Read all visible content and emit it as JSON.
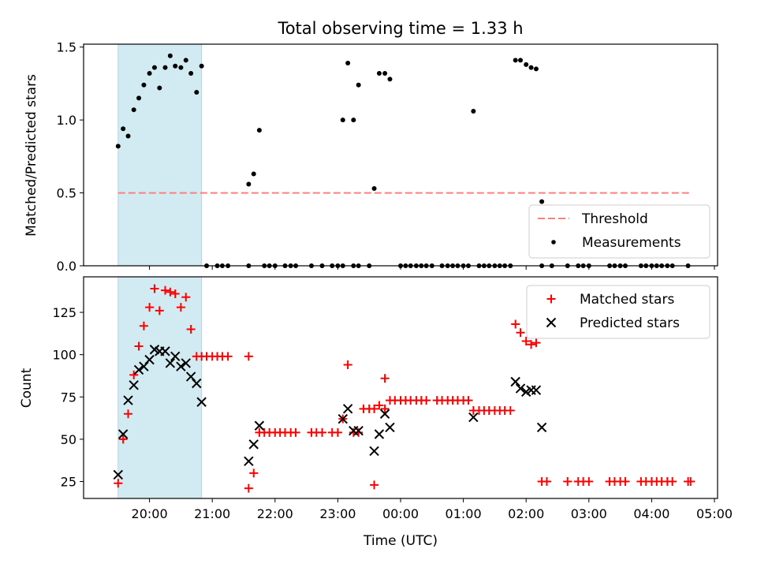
{
  "title": "Total observing time = 1.33 h",
  "chart_data": [
    {
      "type": "scatter",
      "panel": "top",
      "ylabel": "Matched/Predicted stars",
      "ylim": [
        0,
        1.52
      ],
      "yticks": [
        0.0,
        0.5,
        1.0,
        1.5
      ],
      "ytick_labels": [
        "0.0",
        "0.5",
        "1.0",
        "1.5"
      ],
      "highlight_span_hours": [
        19.5,
        20.83
      ],
      "highlight_color": "#add8e6",
      "threshold": {
        "name": "Threshold",
        "value": 0.5,
        "x_range": [
          19.5,
          28.6
        ],
        "color": "#ff7f7f",
        "style": "dashed"
      },
      "series": [
        {
          "name": "Measurements",
          "color": "#000000",
          "points_hours_ratio": [
            [
              19.5,
              0.82
            ],
            [
              19.58,
              0.94
            ],
            [
              19.66,
              0.89
            ],
            [
              19.75,
              1.07
            ],
            [
              19.83,
              1.15
            ],
            [
              19.91,
              1.24
            ],
            [
              20.0,
              1.32
            ],
            [
              20.08,
              1.36
            ],
            [
              20.16,
              1.22
            ],
            [
              20.25,
              1.36
            ],
            [
              20.33,
              1.44
            ],
            [
              20.41,
              1.37
            ],
            [
              20.5,
              1.36
            ],
            [
              20.58,
              1.41
            ],
            [
              20.66,
              1.32
            ],
            [
              20.75,
              1.19
            ],
            [
              20.83,
              1.37
            ],
            [
              20.91,
              0
            ],
            [
              21.08,
              0
            ],
            [
              21.16,
              0
            ],
            [
              21.25,
              0
            ],
            [
              21.58,
              0
            ],
            [
              21.83,
              0
            ],
            [
              21.91,
              0
            ],
            [
              22.0,
              0
            ],
            [
              22.16,
              0
            ],
            [
              22.25,
              0
            ],
            [
              22.33,
              0
            ],
            [
              22.58,
              0
            ],
            [
              22.75,
              0
            ],
            [
              22.91,
              0
            ],
            [
              23.0,
              0
            ],
            [
              23.08,
              0
            ],
            [
              23.25,
              0
            ],
            [
              23.33,
              0
            ],
            [
              23.5,
              0
            ],
            [
              24.0,
              0
            ],
            [
              24.08,
              0
            ],
            [
              24.16,
              0
            ],
            [
              24.25,
              0
            ],
            [
              24.33,
              0
            ],
            [
              24.41,
              0
            ],
            [
              24.5,
              0
            ],
            [
              24.66,
              0
            ],
            [
              24.75,
              0
            ],
            [
              24.83,
              0
            ],
            [
              24.91,
              0
            ],
            [
              25.0,
              0
            ],
            [
              25.08,
              0
            ],
            [
              25.25,
              0
            ],
            [
              25.33,
              0
            ],
            [
              25.41,
              0
            ],
            [
              25.5,
              0
            ],
            [
              25.58,
              0
            ],
            [
              25.66,
              0
            ],
            [
              25.75,
              0
            ],
            [
              26.25,
              0
            ],
            [
              26.41,
              0
            ],
            [
              26.66,
              0
            ],
            [
              26.83,
              0
            ],
            [
              26.91,
              0
            ],
            [
              27.0,
              0
            ],
            [
              27.33,
              0
            ],
            [
              27.41,
              0
            ],
            [
              27.5,
              0
            ],
            [
              27.58,
              0
            ],
            [
              27.83,
              0
            ],
            [
              27.91,
              0
            ],
            [
              28.0,
              0
            ],
            [
              28.08,
              0
            ],
            [
              28.16,
              0
            ],
            [
              28.25,
              0
            ],
            [
              28.33,
              0
            ],
            [
              28.58,
              0
            ],
            [
              21.58,
              0.56
            ],
            [
              21.66,
              0.63
            ],
            [
              21.75,
              0.93
            ],
            [
              23.08,
              1.0
            ],
            [
              23.16,
              1.39
            ],
            [
              23.25,
              1.0
            ],
            [
              23.33,
              1.24
            ],
            [
              23.58,
              0.53
            ],
            [
              23.66,
              1.32
            ],
            [
              23.75,
              1.32
            ],
            [
              23.83,
              1.28
            ],
            [
              25.16,
              1.06
            ],
            [
              25.83,
              1.41
            ],
            [
              25.91,
              1.41
            ],
            [
              26.0,
              1.38
            ],
            [
              26.08,
              1.36
            ],
            [
              26.16,
              1.35
            ],
            [
              26.25,
              0.44
            ]
          ]
        }
      ]
    },
    {
      "type": "scatter",
      "panel": "bottom",
      "xlabel": "Time (UTC)",
      "ylabel": "Count",
      "xlim_hours": [
        18.95,
        29.05
      ],
      "ylim": [
        15,
        146
      ],
      "yticks": [
        25,
        50,
        75,
        100,
        125
      ],
      "ytick_labels": [
        "25",
        "50",
        "75",
        "100",
        "125"
      ],
      "xticks_hours": [
        20,
        21,
        22,
        23,
        24,
        25,
        26,
        27,
        28,
        29
      ],
      "xtick_labels": [
        "20:00",
        "21:00",
        "22:00",
        "23:00",
        "00:00",
        "01:00",
        "02:00",
        "03:00",
        "04:00",
        "05:00"
      ],
      "highlight_span_hours": [
        19.5,
        20.83
      ],
      "highlight_color": "#add8e6",
      "series": [
        {
          "name": "Matched stars",
          "marker": "plus",
          "color": "#ff0000",
          "points_hours_count": [
            [
              19.5,
              24
            ],
            [
              19.58,
              50
            ],
            [
              19.66,
              65
            ],
            [
              19.75,
              88
            ],
            [
              19.83,
              105
            ],
            [
              19.91,
              117
            ],
            [
              20.0,
              128
            ],
            [
              20.08,
              139
            ],
            [
              20.16,
              126
            ],
            [
              20.25,
              138
            ],
            [
              20.33,
              137
            ],
            [
              20.41,
              136
            ],
            [
              20.5,
              128
            ],
            [
              20.58,
              134
            ],
            [
              20.66,
              115
            ],
            [
              20.75,
              99
            ],
            [
              20.83,
              99
            ],
            [
              20.91,
              99
            ],
            [
              21.0,
              99
            ],
            [
              21.08,
              99
            ],
            [
              21.16,
              99
            ],
            [
              21.25,
              99
            ],
            [
              21.58,
              99
            ],
            [
              21.58,
              21
            ],
            [
              21.66,
              30
            ],
            [
              21.75,
              54
            ],
            [
              21.83,
              54
            ],
            [
              21.91,
              54
            ],
            [
              22.0,
              54
            ],
            [
              22.08,
              54
            ],
            [
              22.16,
              54
            ],
            [
              22.25,
              54
            ],
            [
              22.33,
              54
            ],
            [
              22.58,
              54
            ],
            [
              22.66,
              54
            ],
            [
              22.75,
              54
            ],
            [
              22.91,
              54
            ],
            [
              23.0,
              54
            ],
            [
              23.08,
              62
            ],
            [
              23.16,
              94
            ],
            [
              23.25,
              54
            ],
            [
              23.33,
              54
            ],
            [
              23.41,
              68
            ],
            [
              23.5,
              68
            ],
            [
              23.58,
              68
            ],
            [
              23.58,
              23
            ],
            [
              23.66,
              70
            ],
            [
              23.75,
              86
            ],
            [
              23.75,
              68
            ],
            [
              23.83,
              73
            ],
            [
              23.91,
              73
            ],
            [
              24.0,
              73
            ],
            [
              24.08,
              73
            ],
            [
              24.16,
              73
            ],
            [
              24.25,
              73
            ],
            [
              24.33,
              73
            ],
            [
              24.41,
              73
            ],
            [
              24.58,
              73
            ],
            [
              24.66,
              73
            ],
            [
              24.75,
              73
            ],
            [
              24.83,
              73
            ],
            [
              24.91,
              73
            ],
            [
              25.0,
              73
            ],
            [
              25.08,
              73
            ],
            [
              25.16,
              67
            ],
            [
              25.25,
              67
            ],
            [
              25.33,
              67
            ],
            [
              25.41,
              67
            ],
            [
              25.5,
              67
            ],
            [
              25.58,
              67
            ],
            [
              25.66,
              67
            ],
            [
              25.75,
              67
            ],
            [
              25.83,
              118
            ],
            [
              25.91,
              113
            ],
            [
              26.0,
              108
            ],
            [
              26.08,
              106
            ],
            [
              26.16,
              107
            ],
            [
              26.25,
              25
            ],
            [
              26.33,
              25
            ],
            [
              26.66,
              25
            ],
            [
              26.83,
              25
            ],
            [
              26.91,
              25
            ],
            [
              27.0,
              25
            ],
            [
              27.33,
              25
            ],
            [
              27.41,
              25
            ],
            [
              27.5,
              25
            ],
            [
              27.58,
              25
            ],
            [
              27.83,
              25
            ],
            [
              27.91,
              25
            ],
            [
              28.0,
              25
            ],
            [
              28.08,
              25
            ],
            [
              28.16,
              25
            ],
            [
              28.25,
              25
            ],
            [
              28.33,
              25
            ],
            [
              28.58,
              25
            ],
            [
              28.62,
              25
            ]
          ]
        },
        {
          "name": "Predicted stars",
          "marker": "x",
          "color": "#000000",
          "points_hours_count": [
            [
              19.5,
              29
            ],
            [
              19.58,
              53
            ],
            [
              19.66,
              73
            ],
            [
              19.75,
              82
            ],
            [
              19.83,
              91
            ],
            [
              19.91,
              93
            ],
            [
              20.0,
              97
            ],
            [
              20.08,
              103
            ],
            [
              20.16,
              102
            ],
            [
              20.25,
              102
            ],
            [
              20.33,
              95
            ],
            [
              20.41,
              99
            ],
            [
              20.5,
              93
            ],
            [
              20.58,
              95
            ],
            [
              20.66,
              87
            ],
            [
              20.75,
              83
            ],
            [
              20.83,
              72
            ],
            [
              21.58,
              37
            ],
            [
              21.66,
              47
            ],
            [
              21.75,
              58
            ],
            [
              23.08,
              62
            ],
            [
              23.16,
              68
            ],
            [
              23.25,
              55
            ],
            [
              23.33,
              55
            ],
            [
              23.58,
              43
            ],
            [
              23.66,
              53
            ],
            [
              23.75,
              65
            ],
            [
              23.83,
              57
            ],
            [
              25.16,
              63
            ],
            [
              25.83,
              84
            ],
            [
              25.91,
              80
            ],
            [
              26.0,
              78
            ],
            [
              26.08,
              79
            ],
            [
              26.16,
              79
            ],
            [
              26.25,
              57
            ]
          ]
        }
      ]
    }
  ]
}
